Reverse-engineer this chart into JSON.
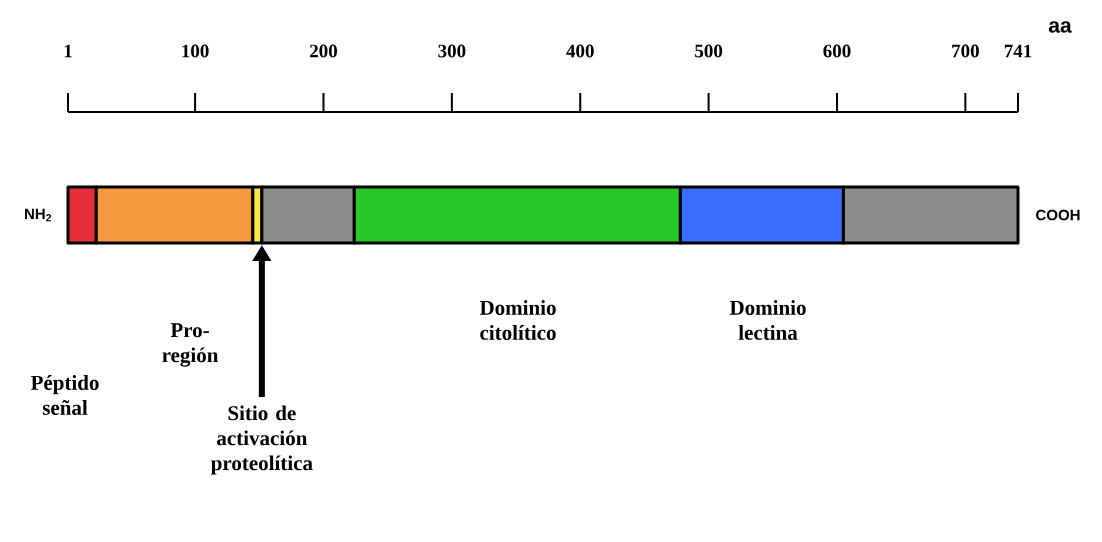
{
  "chart_data": {
    "type": "bar",
    "orientation": "horizontal",
    "categories": [
      null
    ],
    "xlabel": "aa",
    "xlim": [
      1,
      741
    ],
    "xticks": [
      1,
      100,
      200,
      300,
      400,
      500,
      600,
      700,
      741
    ],
    "series": [
      {
        "color": "#e8303c",
        "base": [
          1
        ],
        "values": [
          22
        ]
      },
      {
        "color": "#f59a3c",
        "base": [
          23
        ],
        "values": [
          122
        ]
      },
      {
        "color": "#ffe840",
        "base": [
          145
        ],
        "values": [
          7
        ]
      },
      {
        "color": "#8c8c8c",
        "base": [
          152
        ],
        "values": [
          72
        ]
      },
      {
        "color": "#28c828",
        "base": [
          224
        ],
        "values": [
          254
        ]
      },
      {
        "color": "#3a6cff",
        "base": [
          478
        ],
        "values": [
          127
        ]
      },
      {
        "color": "#8c8c8c",
        "base": [
          605
        ],
        "values": [
          136
        ]
      }
    ],
    "annotations": [
      {
        "text": "NH$_{2}$",
        "x": 1
      },
      {
        "text": "COOH",
        "x": 741
      },
      "Péptido señal",
      "Pro-región",
      "Dominio citolítico",
      "Dominio lectina"
    ],
    "ref_lines": [
      {
        "axis": "x",
        "value": 152,
        "label": "Sitio de activación proteolítica",
        "color": "#000000"
      }
    ]
  }
}
